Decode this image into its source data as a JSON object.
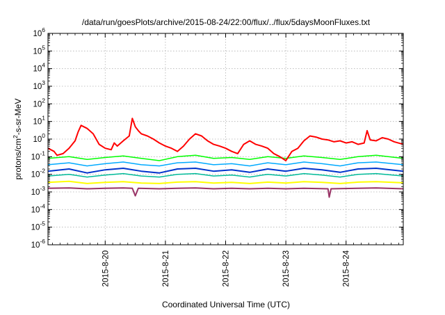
{
  "chart_data": {
    "type": "line",
    "title": "/data/run/goesPlots/archive/2015-08-24/22:00/flux/../flux/5daysMoonFluxes.txt",
    "xlabel": "Coordinated Universal Time (UTC)",
    "ylabel": "protons/cm²-s-sr-MeV",
    "ylabel_parts": {
      "pre": "protons/cm",
      "sup": "2",
      "post": "-s-sr-MeV"
    },
    "y_scale": "log",
    "ylim": [
      1e-06,
      1000000.0
    ],
    "xlim": [
      -0.95,
      4.95
    ],
    "x_origin_label": "2015-8-20",
    "x_tick_labels": [
      "2015-8-20",
      "2015-8-21",
      "2015-8-22",
      "2015-8-23",
      "2015-8-24"
    ],
    "y_tick_labels": [
      {
        "base": "10",
        "exp": "-6"
      },
      {
        "base": "10",
        "exp": "-5"
      },
      {
        "base": "10",
        "exp": "-4"
      },
      {
        "base": "10",
        "exp": "-3"
      },
      {
        "base": "10",
        "exp": "-2"
      },
      {
        "base": "10",
        "exp": "-1"
      },
      {
        "base": "10",
        "exp": "0"
      },
      {
        "base": "10",
        "exp": "1"
      },
      {
        "base": "10",
        "exp": "2"
      },
      {
        "base": "10",
        "exp": "3"
      },
      {
        "base": "10",
        "exp": "4"
      },
      {
        "base": "10",
        "exp": "5"
      },
      {
        "base": "10",
        "exp": "6"
      }
    ],
    "grid": true,
    "legend": "none",
    "series": [
      {
        "color": "#ff0000",
        "stroke_width": 2,
        "x": [
          -0.95,
          -0.85,
          -0.8,
          -0.7,
          -0.6,
          -0.5,
          -0.45,
          -0.4,
          -0.3,
          -0.2,
          -0.1,
          0.0,
          0.1,
          0.15,
          0.2,
          0.3,
          0.4,
          0.45,
          0.5,
          0.55,
          0.6,
          0.7,
          0.8,
          0.9,
          1.0,
          1.1,
          1.2,
          1.3,
          1.4,
          1.5,
          1.6,
          1.7,
          1.8,
          1.9,
          2.0,
          2.1,
          2.2,
          2.3,
          2.4,
          2.5,
          2.6,
          2.7,
          2.8,
          2.9,
          3.0,
          3.1,
          3.2,
          3.3,
          3.4,
          3.5,
          3.6,
          3.7,
          3.8,
          3.9,
          4.0,
          4.1,
          4.2,
          4.3,
          4.35,
          4.4,
          4.5,
          4.6,
          4.7,
          4.8,
          4.95
        ],
        "y": [
          0.3,
          0.2,
          0.12,
          0.15,
          0.3,
          0.8,
          2.5,
          6.0,
          4.0,
          2.0,
          0.5,
          0.3,
          0.25,
          0.6,
          0.4,
          0.8,
          1.5,
          15.0,
          5.0,
          3.0,
          2.0,
          1.5,
          1.0,
          0.6,
          0.4,
          0.3,
          0.2,
          0.4,
          1.0,
          2.0,
          1.5,
          0.8,
          0.5,
          0.4,
          0.3,
          0.2,
          0.15,
          0.5,
          0.8,
          0.5,
          0.4,
          0.3,
          0.15,
          0.1,
          0.06,
          0.2,
          0.3,
          0.8,
          1.5,
          1.3,
          1.0,
          0.9,
          0.7,
          0.8,
          0.6,
          0.7,
          0.5,
          0.6,
          3.0,
          0.9,
          0.8,
          1.2,
          1.0,
          0.7,
          0.5
        ]
      },
      {
        "color": "#00ff00",
        "stroke_width": 1.5,
        "x": [
          -0.95,
          -0.6,
          -0.3,
          0.0,
          0.3,
          0.6,
          0.9,
          1.2,
          1.5,
          1.8,
          2.1,
          2.4,
          2.7,
          3.0,
          3.3,
          3.6,
          3.9,
          4.2,
          4.5,
          4.95
        ],
        "y": [
          0.08,
          0.1,
          0.07,
          0.09,
          0.11,
          0.08,
          0.06,
          0.1,
          0.12,
          0.08,
          0.09,
          0.07,
          0.1,
          0.08,
          0.11,
          0.09,
          0.07,
          0.1,
          0.12,
          0.08
        ]
      },
      {
        "color": "#00aaff",
        "stroke_width": 1.5,
        "x": [
          -0.95,
          -0.6,
          -0.3,
          0.0,
          0.3,
          0.6,
          0.9,
          1.2,
          1.5,
          1.8,
          2.1,
          2.4,
          2.7,
          3.0,
          3.3,
          3.6,
          3.9,
          4.2,
          4.5,
          4.95
        ],
        "y": [
          0.035,
          0.045,
          0.03,
          0.04,
          0.05,
          0.035,
          0.03,
          0.045,
          0.05,
          0.035,
          0.04,
          0.03,
          0.045,
          0.035,
          0.05,
          0.04,
          0.03,
          0.045,
          0.05,
          0.035
        ]
      },
      {
        "color": "#0033cc",
        "stroke_width": 2,
        "x": [
          -0.95,
          -0.6,
          -0.3,
          0.0,
          0.3,
          0.6,
          0.9,
          1.2,
          1.5,
          1.8,
          2.1,
          2.4,
          2.7,
          3.0,
          3.3,
          3.6,
          3.9,
          4.2,
          4.5,
          4.95
        ],
        "y": [
          0.015,
          0.02,
          0.012,
          0.018,
          0.022,
          0.015,
          0.012,
          0.02,
          0.022,
          0.015,
          0.018,
          0.013,
          0.02,
          0.015,
          0.022,
          0.018,
          0.013,
          0.02,
          0.022,
          0.015
        ]
      },
      {
        "color": "#00bb99",
        "stroke_width": 1.5,
        "x": [
          -0.95,
          -0.6,
          -0.3,
          0.0,
          0.3,
          0.6,
          0.9,
          1.2,
          1.5,
          1.8,
          2.1,
          2.4,
          2.7,
          3.0,
          3.3,
          3.6,
          3.9,
          4.2,
          4.5,
          4.95
        ],
        "y": [
          0.008,
          0.01,
          0.007,
          0.009,
          0.011,
          0.008,
          0.007,
          0.01,
          0.011,
          0.008,
          0.009,
          0.007,
          0.01,
          0.008,
          0.011,
          0.009,
          0.007,
          0.01,
          0.011,
          0.008
        ]
      },
      {
        "color": "#ffff00",
        "stroke_width": 2,
        "x": [
          -0.95,
          -0.6,
          -0.3,
          0.0,
          0.3,
          0.6,
          0.9,
          1.2,
          1.5,
          1.8,
          2.1,
          2.4,
          2.7,
          3.0,
          3.3,
          3.6,
          3.9,
          4.2,
          4.5,
          4.95
        ],
        "y": [
          0.0035,
          0.004,
          0.003,
          0.0035,
          0.0038,
          0.0032,
          0.003,
          0.0036,
          0.0038,
          0.0032,
          0.0035,
          0.003,
          0.0036,
          0.0032,
          0.0038,
          0.0035,
          0.003,
          0.0036,
          0.0038,
          0.0033
        ]
      },
      {
        "color": "#993366",
        "stroke_width": 2,
        "x": [
          -0.95,
          -0.6,
          -0.3,
          0.0,
          0.3,
          0.45,
          0.5,
          0.55,
          0.9,
          1.2,
          1.5,
          1.8,
          2.1,
          2.4,
          2.7,
          3.0,
          3.3,
          3.7,
          3.72,
          3.75,
          4.2,
          4.5,
          4.95
        ],
        "y": [
          0.0016,
          0.0017,
          0.0015,
          0.0016,
          0.0017,
          0.0016,
          0.0006,
          0.0016,
          0.0015,
          0.0016,
          0.0017,
          0.0015,
          0.0016,
          0.0015,
          0.0016,
          0.0015,
          0.0016,
          0.0015,
          0.0005,
          0.0015,
          0.0016,
          0.0017,
          0.0015
        ]
      }
    ]
  }
}
